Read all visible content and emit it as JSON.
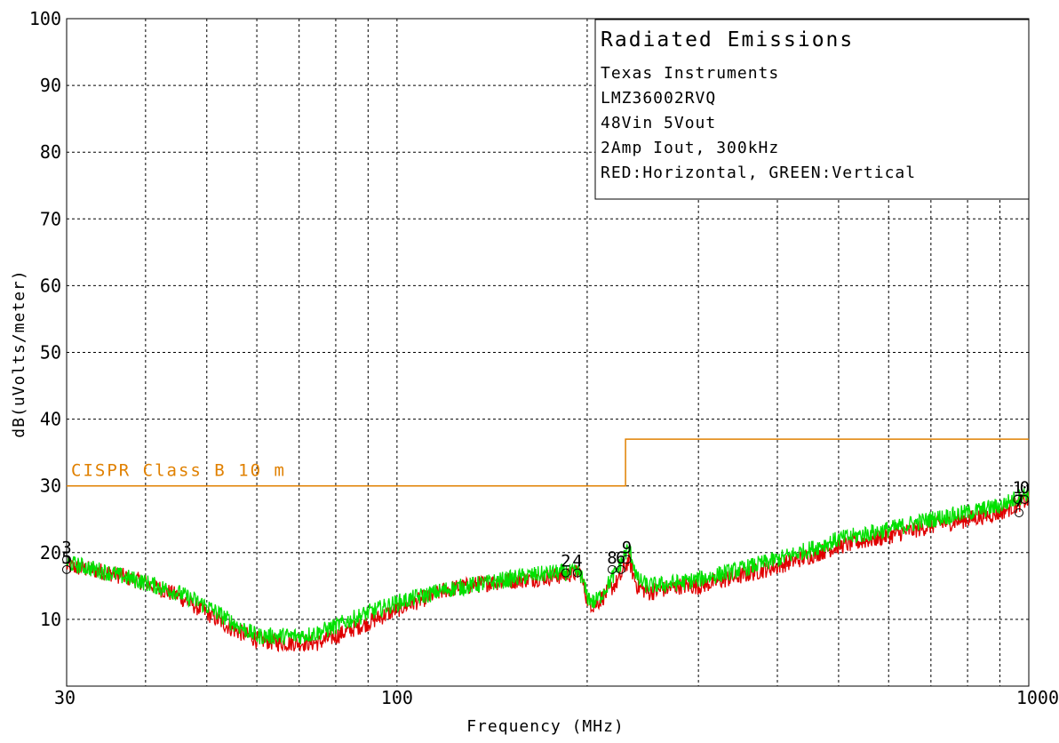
{
  "chart_data": {
    "type": "line",
    "title": "Radiated Emissions",
    "info_lines": [
      "Texas Instruments",
      "LMZ36002RVQ",
      "48Vin 5Vout",
      "2Amp Iout, 300kHz",
      "RED:Horizontal, GREEN:Vertical"
    ],
    "xlabel": "Frequency (MHz)",
    "ylabel": "dB(uVolts/meter)",
    "x_scale": "log",
    "xlim": [
      30,
      1000
    ],
    "ylim": [
      0,
      100
    ],
    "x_ticks": [
      30,
      100,
      1000
    ],
    "x_tick_labels": [
      "30",
      "100",
      "1000"
    ],
    "y_ticks": [
      10,
      20,
      30,
      40,
      50,
      60,
      70,
      80,
      90,
      100
    ],
    "y_tick_labels": [
      "10",
      "20",
      "30",
      "40",
      "50",
      "60",
      "70",
      "80",
      "90",
      "100"
    ],
    "grid": true,
    "colors": {
      "red": "#e00000",
      "green": "#00e000",
      "limit": "#e08000",
      "grid": "#000000"
    },
    "limit_line": {
      "name": "CISPR Class B 10 m",
      "points": [
        [
          30,
          30
        ],
        [
          230,
          30
        ],
        [
          230,
          37
        ],
        [
          1000,
          37
        ]
      ]
    },
    "series": [
      {
        "color": "red",
        "x": [
          30,
          35,
          40,
          45,
          50,
          55,
          60,
          65,
          70,
          75,
          80,
          90,
          100,
          120,
          140,
          160,
          180,
          195,
          200,
          205,
          210,
          215,
          220,
          225,
          230,
          233,
          236,
          240,
          250,
          280,
          300,
          350,
          400,
          450,
          500,
          600,
          700,
          800,
          900,
          1000
        ],
        "y": [
          18,
          17,
          15.5,
          13.5,
          11,
          8.5,
          7,
          6.5,
          6.5,
          6.5,
          7.5,
          9.5,
          11.5,
          14.5,
          15.5,
          16,
          16.5,
          17,
          13,
          12,
          13,
          14,
          15,
          16,
          18,
          19,
          17,
          15,
          14,
          15,
          15,
          16.5,
          18,
          19.5,
          21,
          22.5,
          24,
          25,
          26,
          28
        ]
      },
      {
        "color": "green",
        "x": [
          30,
          35,
          40,
          45,
          50,
          55,
          60,
          65,
          70,
          75,
          80,
          90,
          100,
          120,
          140,
          160,
          180,
          195,
          200,
          205,
          210,
          215,
          220,
          225,
          230,
          233,
          236,
          240,
          250,
          280,
          300,
          350,
          400,
          450,
          500,
          600,
          700,
          800,
          900,
          1000
        ],
        "y": [
          18.5,
          17,
          15.5,
          14,
          12,
          9.5,
          7.5,
          7.5,
          7.5,
          8,
          9,
          11,
          12.5,
          14.5,
          15.5,
          16.5,
          17,
          17,
          13.5,
          12.5,
          13.5,
          15,
          16.5,
          18,
          20,
          20.5,
          19,
          16,
          15,
          15.5,
          16,
          17.5,
          19,
          20.5,
          22,
          23.5,
          25,
          26,
          27,
          29
        ]
      }
    ],
    "markers": [
      {
        "label": "3",
        "x": 30,
        "y": 19.5
      },
      {
        "label": "5",
        "x": 30,
        "y": 18
      },
      {
        "label": "2",
        "x": 185,
        "y": 17.5
      },
      {
        "label": "4",
        "x": 193,
        "y": 17.5
      },
      {
        "label": "8",
        "x": 219,
        "y": 18
      },
      {
        "label": "6",
        "x": 226,
        "y": 18
      },
      {
        "label": "9",
        "x": 231,
        "y": 19.5
      },
      {
        "label": "1",
        "x": 960,
        "y": 28.5
      },
      {
        "label": "7",
        "x": 965,
        "y": 26.5
      },
      {
        "label": "0",
        "x": 985,
        "y": 28.5
      }
    ]
  }
}
